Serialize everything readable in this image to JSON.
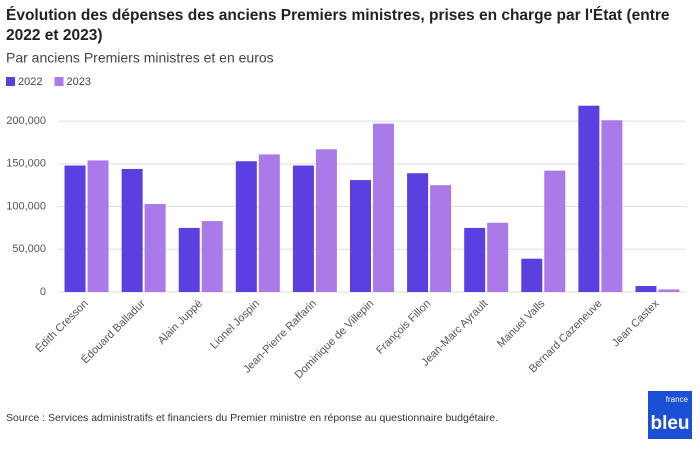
{
  "chart_data": {
    "type": "bar",
    "title": "Évolution des dépenses des anciens Premiers ministres, prises en charge par l'État (entre 2022 et 2023)",
    "title_lines": [
      "Évolution des dépenses des anciens Premiers ministres, prises en charge par l'État (entre",
      "2022 et 2023)"
    ],
    "subtitle": "Par anciens Premiers ministres et en euros",
    "categories": [
      "Édith Cresson",
      "Édouard Balladur",
      "Alain Juppé",
      "Lionel Jospin",
      "Jean-Pierre Raffarin",
      "Dominique de Villepin",
      "François Fillon",
      "Jean-Marc Ayrault",
      "Manuel Valls",
      "Bernard Cazeneuve",
      "Jean Castex"
    ],
    "series": [
      {
        "name": "2022",
        "color": "#5b3fe0",
        "values": [
          148000,
          144000,
          75000,
          153000,
          148000,
          131000,
          139000,
          75000,
          39000,
          218000,
          7000
        ]
      },
      {
        "name": "2023",
        "color": "#a97ae8",
        "values": [
          154000,
          103000,
          83000,
          161000,
          167000,
          197000,
          125000,
          81000,
          142000,
          201000,
          3000
        ]
      }
    ],
    "ylim": [
      0,
      220000
    ],
    "yticks": [
      0,
      {
        "value": 50000,
        "label": "50,000"
      },
      {
        "value": 100000,
        "label": "100,000"
      },
      {
        "value": 150000,
        "label": "150,000"
      },
      {
        "value": 200000,
        "label": "200,000"
      }
    ],
    "grid": true,
    "legend": "top-left",
    "source": "Source : Services administratifs et financiers du Premier ministre en réponse au questionnaire budgétaire."
  },
  "logo": {
    "top": "france",
    "bottom": "bleu"
  }
}
